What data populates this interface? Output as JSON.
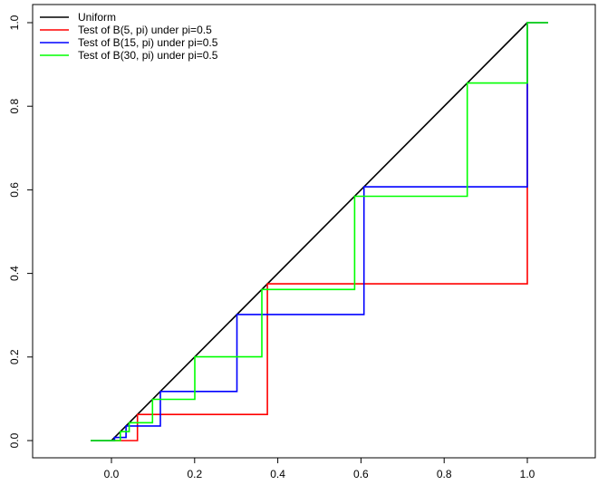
{
  "chart_data": {
    "type": "line",
    "title": "",
    "xlabel": "",
    "ylabel": "",
    "xlim": [
      -0.05,
      1.05
    ],
    "ylim": [
      0,
      1
    ],
    "x_ticks": [
      "0.0",
      "0.2",
      "0.4",
      "0.6",
      "0.8",
      "1.0"
    ],
    "y_ticks": [
      "0.0",
      "0.2",
      "0.4",
      "0.6",
      "0.8",
      "1.0"
    ],
    "legend_position": "top-left",
    "grid": false,
    "series": [
      {
        "name": "Uniform",
        "color": "#000000",
        "style": "line",
        "points": [
          [
            0,
            0
          ],
          [
            1,
            1
          ]
        ]
      },
      {
        "name": "Test of B(5, pi) under pi=0.5",
        "color": "#ff0000",
        "style": "step",
        "points": [
          [
            -0.05,
            0
          ],
          [
            0.0625,
            0
          ],
          [
            0.0625,
            0.0625
          ],
          [
            0.375,
            0.0625
          ],
          [
            0.375,
            0.375
          ],
          [
            1.0,
            0.375
          ],
          [
            1.0,
            1.0
          ],
          [
            1.05,
            1.0
          ]
        ]
      },
      {
        "name": "Test of B(15, pi) under pi=0.5",
        "color": "#0000ff",
        "style": "step",
        "points": [
          [
            -0.05,
            0
          ],
          [
            0.0074,
            0
          ],
          [
            0.0074,
            0.0074
          ],
          [
            0.035,
            0.0074
          ],
          [
            0.035,
            0.035
          ],
          [
            0.1176,
            0.035
          ],
          [
            0.1176,
            0.1176
          ],
          [
            0.3018,
            0.1176
          ],
          [
            0.3018,
            0.3018
          ],
          [
            0.6072,
            0.3018
          ],
          [
            0.6072,
            0.6072
          ],
          [
            1.0,
            0.6072
          ],
          [
            1.0,
            1.0
          ],
          [
            1.05,
            1.0
          ]
        ]
      },
      {
        "name": "Test of B(30, pi) under pi=0.5",
        "color": "#00ff00",
        "style": "step",
        "points": [
          [
            -0.05,
            0
          ],
          [
            0.0214,
            0
          ],
          [
            0.0214,
            0.0214
          ],
          [
            0.0428,
            0.0214
          ],
          [
            0.0428,
            0.0428
          ],
          [
            0.0987,
            0.0428
          ],
          [
            0.0987,
            0.0987
          ],
          [
            0.2005,
            0.0987
          ],
          [
            0.2005,
            0.2005
          ],
          [
            0.3616,
            0.2005
          ],
          [
            0.3616,
            0.3616
          ],
          [
            0.5847,
            0.3616
          ],
          [
            0.5847,
            0.5847
          ],
          [
            0.8555,
            0.5847
          ],
          [
            0.8555,
            0.8555
          ],
          [
            1.0,
            0.8555
          ],
          [
            1.0,
            1.0
          ],
          [
            1.05,
            1.0
          ]
        ]
      }
    ]
  }
}
